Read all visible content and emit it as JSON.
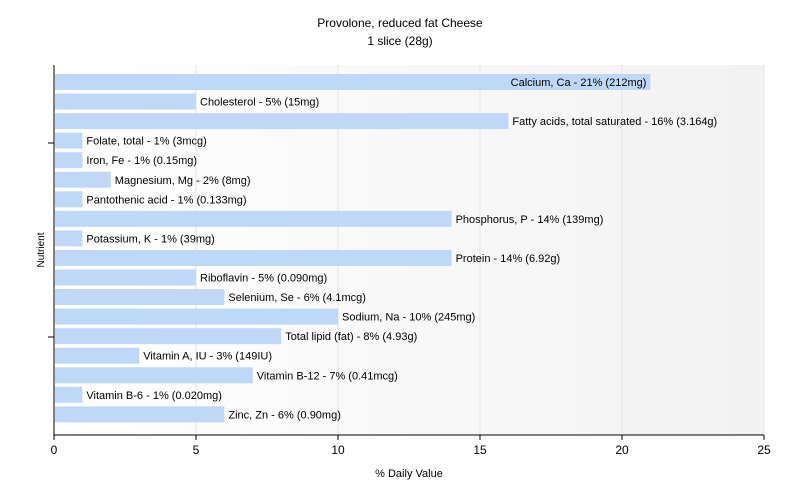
{
  "chart_data": {
    "type": "bar",
    "orientation": "horizontal",
    "title": "Provolone, reduced fat Cheese",
    "subtitle": "1 slice (28g)",
    "xlabel": "% Daily Value",
    "ylabel": "Nutrient",
    "xlim": [
      0,
      25
    ],
    "xticks": [
      0,
      5,
      10,
      15,
      20,
      25
    ],
    "grid": true,
    "bar_color": "#c0d8f7",
    "categories": [
      "Calcium, Ca - 21% (212mg)",
      "Cholesterol - 5% (15mg)",
      "Fatty acids, total saturated - 16% (3.164g)",
      "Folate, total - 1% (3mcg)",
      "Iron, Fe - 1% (0.15mg)",
      "Magnesium, Mg - 2% (8mg)",
      "Pantothenic acid - 1% (0.133mg)",
      "Phosphorus, P - 14% (139mg)",
      "Potassium, K - 1% (39mg)",
      "Protein - 14% (6.92g)",
      "Riboflavin - 5% (0.090mg)",
      "Selenium, Se - 6% (4.1mcg)",
      "Sodium, Na - 10% (245mg)",
      "Total lipid (fat) - 8% (4.93g)",
      "Vitamin A, IU - 3% (149IU)",
      "Vitamin B-12 - 7% (0.41mcg)",
      "Vitamin B-6 - 1% (0.020mg)",
      "Zinc, Zn - 6% (0.90mg)"
    ],
    "values": [
      21,
      5,
      16,
      1,
      1,
      2,
      1,
      14,
      1,
      14,
      5,
      6,
      10,
      8,
      3,
      7,
      1,
      6
    ]
  }
}
